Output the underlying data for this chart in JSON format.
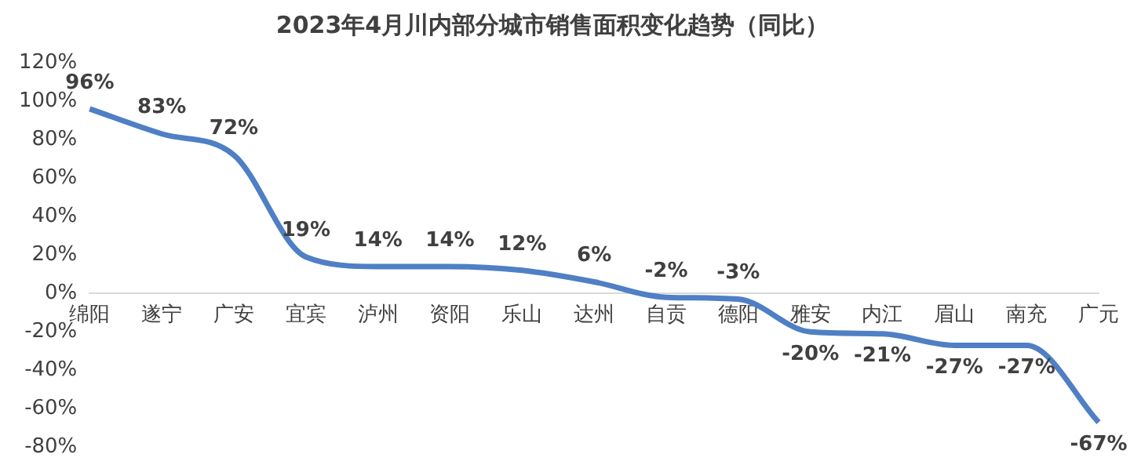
{
  "chart_data": {
    "type": "line",
    "title": "2023年4月川内部分城市销售面积变化趋势（同比）",
    "categories": [
      "绵阳",
      "遂宁",
      "广安",
      "宜宾",
      "泸州",
      "资阳",
      "乐山",
      "达州",
      "自贡",
      "德阳",
      "雅安",
      "内江",
      "眉山",
      "南充",
      "广元"
    ],
    "series": [
      {
        "color": "#4f7fc4",
        "values": [
          96,
          83,
          72,
          19,
          14,
          14,
          12,
          6,
          -2,
          -3,
          -20,
          -21,
          -27,
          -27,
          -67
        ]
      }
    ],
    "value_labels": [
      "96%",
      "83%",
      "72%",
      "19%",
      "14%",
      "14%",
      "12%",
      "6%",
      "-2%",
      "-3%",
      "-20%",
      "-21%",
      "-27%",
      "-27%",
      "-67%"
    ],
    "ylim": [
      -80,
      120
    ],
    "yticks": [
      {
        "value": -80,
        "label": "-80%"
      },
      {
        "value": -60,
        "label": "-60%"
      },
      {
        "value": -40,
        "label": "-40%"
      },
      {
        "value": -20,
        "label": "-20%"
      },
      {
        "value": 0,
        "label": "0%"
      },
      {
        "value": 20,
        "label": "20%"
      },
      {
        "value": 40,
        "label": "40%"
      },
      {
        "value": 60,
        "label": "60%"
      },
      {
        "value": 80,
        "label": "80%"
      },
      {
        "value": 100,
        "label": "100%"
      },
      {
        "value": 120,
        "label": "120%"
      }
    ],
    "grid": false,
    "legend": false,
    "marker": "none",
    "line_style": "solid"
  }
}
